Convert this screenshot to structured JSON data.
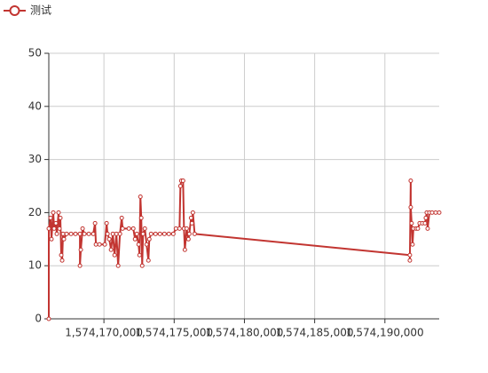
{
  "chart_data": {
    "type": "line",
    "legend": "top-left",
    "grid": true,
    "x": [
      1574166076,
      1574166076,
      1574166203,
      1574166266,
      1574166393,
      1574166456,
      1574166582,
      1574166646,
      1574166772,
      1574166836,
      1574166899,
      1574166962,
      1574167026,
      1574167089,
      1574167152,
      1574167342,
      1574167659,
      1574167975,
      1574168292,
      1574168292,
      1574168355,
      1574168481,
      1574168608,
      1574168925,
      1574169241,
      1574169368,
      1574169431,
      1574169684,
      1574170064,
      1574170191,
      1574170254,
      1574170380,
      1574170507,
      1574170634,
      1574170760,
      1574170887,
      1574171013,
      1574171140,
      1574171267,
      1574171330,
      1574171773,
      1574172090,
      1574172216,
      1574172343,
      1574172469,
      1574172533,
      1574172596,
      1574172659,
      1574172723,
      1574172786,
      1574172912,
      1574173039,
      1574173166,
      1574173229,
      1574173356,
      1574173672,
      1574173989,
      1574174305,
      1574174622,
      1574174938,
      1574175128,
      1574175381,
      1574175444,
      1574175508,
      1574175634,
      1574175698,
      1574175761,
      1574175888,
      1574176014,
      1574176077,
      1574176204,
      1574176267,
      1574176331,
      1574176457,
      1574191776,
      1574191776,
      1574191839,
      1574191839,
      1574191902,
      1574191966,
      1574192029,
      1574192219,
      1574192346,
      1574192472,
      1574192662,
      1574192852,
      1574192915,
      1574192979,
      1574193042,
      1574193168,
      1574193358,
      1574193612,
      1574193865
    ],
    "series": [
      {
        "name": "测试",
        "color": "#c23531",
        "values": [
          0,
          17,
          19,
          15,
          20,
          17,
          18,
          16,
          20,
          17,
          19,
          12,
          11,
          16,
          15,
          16,
          16,
          16,
          16,
          10,
          13,
          17,
          16,
          16,
          16,
          18,
          14,
          14,
          14,
          18,
          16,
          15,
          13,
          16,
          12,
          16,
          10,
          16,
          19,
          17,
          17,
          17,
          15,
          16,
          14,
          12,
          23,
          19,
          10,
          16,
          17,
          14,
          11,
          15,
          16,
          16,
          16,
          16,
          16,
          16,
          17,
          17,
          25,
          26,
          26,
          17,
          13,
          17,
          15,
          16,
          19,
          18,
          20,
          16,
          12,
          11,
          26,
          21,
          18,
          14,
          17,
          17,
          17,
          18,
          18,
          18,
          19,
          20,
          17,
          20,
          20,
          20,
          20
        ]
      }
    ],
    "xlim": [
      1574166076,
      1574193865
    ],
    "xticks": [
      {
        "value": 1574170000,
        "label": "1,574,170,000"
      },
      {
        "value": 1574175000,
        "label": "1,574,175,000"
      },
      {
        "value": 1574180000,
        "label": "1,574,180,000"
      },
      {
        "value": 1574185000,
        "label": "1,574,185,000"
      },
      {
        "value": 1574190000,
        "label": "1,574,190,000"
      }
    ],
    "ylim": [
      0,
      50
    ],
    "yticks": [
      0,
      10,
      20,
      30,
      40,
      50
    ]
  }
}
